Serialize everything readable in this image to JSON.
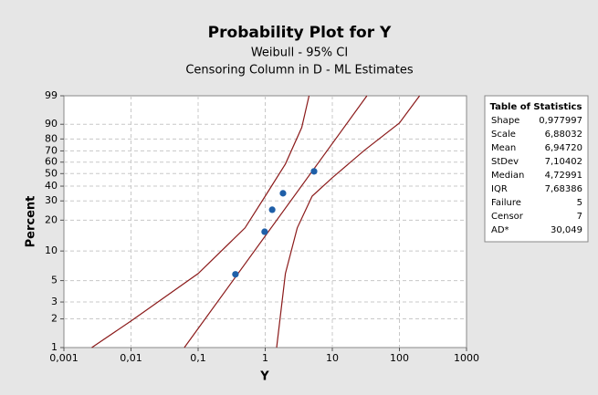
{
  "chart_data": {
    "type": "probability",
    "title": "Probability Plot for Y",
    "subtitle": "Weibull - 95% CI",
    "subtitle2": "Censoring Column in D - ML Estimates",
    "x_label": "Y",
    "y_label": "Percent",
    "x_scale": "log",
    "y_scale": "weibull",
    "grid": true,
    "xlim": [
      0.001,
      1000
    ],
    "xticks": [
      {
        "value": 0.001,
        "label": "0,001"
      },
      {
        "value": 0.01,
        "label": "0,01"
      },
      {
        "value": 0.1,
        "label": "0,1"
      },
      1,
      10,
      100,
      1000
    ],
    "ylim": [
      1,
      99
    ],
    "yticks": [
      1,
      2,
      3,
      5,
      10,
      20,
      30,
      40,
      50,
      60,
      70,
      80,
      90,
      99
    ],
    "series": [
      {
        "style": "marker",
        "color": "#1f5fa8",
        "x": [
          0.36,
          0.98,
          1.27,
          1.84,
          5.34
        ],
        "values": [
          5.8,
          15.5,
          25,
          34.9,
          51.9
        ]
      },
      {
        "style": "line",
        "color": "#8b1a1a",
        "x": [
          0.0624,
          32.8
        ],
        "values": [
          1,
          99
        ]
      },
      {
        "style": "line",
        "color": "#8b1a1a",
        "x": [
          0.0026,
          0.01,
          0.1,
          0.5,
          1,
          2,
          3.5,
          4.5
        ],
        "values": [
          1,
          1.9,
          5.9,
          16.9,
          33,
          58.3,
          88.1,
          99
        ]
      },
      {
        "style": "line",
        "color": "#8b1a1a",
        "x": [
          1.48,
          2,
          3,
          5,
          10,
          30,
          100,
          200
        ],
        "values": [
          1,
          5.9,
          16.9,
          33,
          46.6,
          70.5,
          90.7,
          99
        ]
      }
    ]
  },
  "stats_table": {
    "title": "Table of Statistics",
    "rows": [
      [
        "Shape",
        "0,977997"
      ],
      [
        "Scale",
        "6,88032"
      ],
      [
        "Mean",
        "6,94720"
      ],
      [
        "StDev",
        "7,10402"
      ],
      [
        "Median",
        "4,72991"
      ],
      [
        "IQR",
        "7,68386"
      ],
      [
        "Failure",
        "5"
      ],
      [
        "Censor",
        "7"
      ],
      [
        "AD*",
        "30,049"
      ]
    ]
  }
}
